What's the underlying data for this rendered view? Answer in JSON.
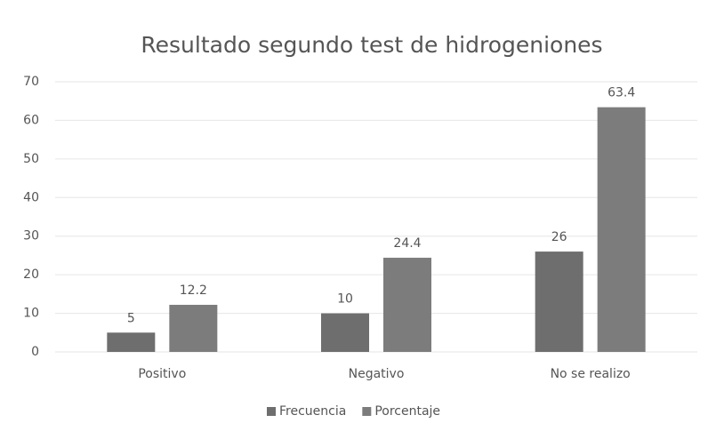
{
  "chart_data": {
    "type": "bar",
    "title": "Resultado segundo test de hidrogeniones",
    "categories": [
      "Positivo",
      "Negativo",
      "No se realizo"
    ],
    "series": [
      {
        "name": "Frecuencia",
        "color": "#6e6e6e",
        "values": [
          5,
          10,
          26
        ]
      },
      {
        "name": "Porcentaje",
        "color": "#7c7c7c",
        "values": [
          12.2,
          24.4,
          63.4
        ]
      }
    ],
    "ylim": [
      0,
      70
    ],
    "yticks": [
      0,
      10,
      20,
      30,
      40,
      50,
      60,
      70
    ],
    "grid": true,
    "legend": "bottom"
  }
}
